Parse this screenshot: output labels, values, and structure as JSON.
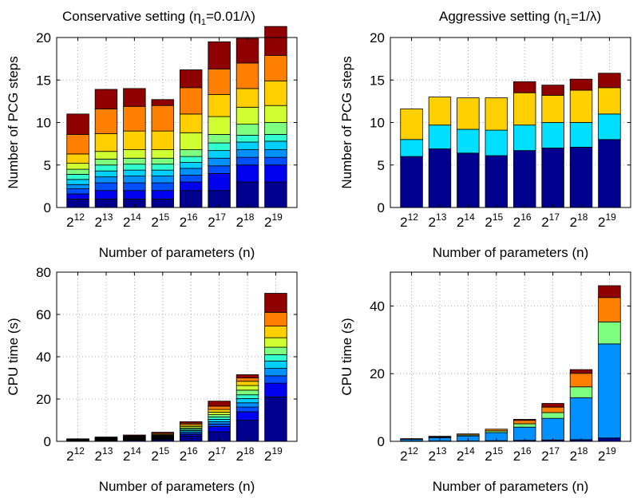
{
  "titles": {
    "left": "Conservative setting (η",
    "left_sub": "1",
    "left_tail": "=0.01/λ)",
    "right": "Aggressive setting (η",
    "right_sub": "1",
    "right_tail": "=1/λ)"
  },
  "chart_data": [
    {
      "type": "bar",
      "stacked": true,
      "categories": [
        "2^12",
        "2^13",
        "2^14",
        "2^15",
        "2^16",
        "2^17",
        "2^18",
        "2^19"
      ],
      "category_labels": [
        {
          "base": "2",
          "exp": "12"
        },
        {
          "base": "2",
          "exp": "13"
        },
        {
          "base": "2",
          "exp": "14"
        },
        {
          "base": "2",
          "exp": "15"
        },
        {
          "base": "2",
          "exp": "16"
        },
        {
          "base": "2",
          "exp": "17"
        },
        {
          "base": "2",
          "exp": "18"
        },
        {
          "base": "2",
          "exp": "19"
        }
      ],
      "xlabel": "Number of parameters (n)",
      "ylabel": "Number of PCG steps",
      "ylim": [
        0,
        20
      ],
      "yticks": [
        0,
        5,
        10,
        15,
        20
      ],
      "grid": true,
      "bars": [
        {
          "segments": [
            1,
            0.6,
            0.6,
            0.5,
            0.6,
            0.6,
            0.6,
            0.7,
            1.1,
            2.3,
            2.4
          ]
        },
        {
          "segments": [
            1,
            1,
            0.9,
            0.7,
            0.7,
            0.7,
            0.7,
            0.9,
            2.1,
            2.9,
            2.3
          ]
        },
        {
          "segments": [
            1,
            1,
            0.9,
            0.8,
            0.7,
            0.7,
            0.7,
            1.0,
            2.2,
            2.9,
            2.1
          ]
        },
        {
          "segments": [
            1,
            1,
            0.9,
            0.8,
            0.7,
            0.7,
            0.7,
            1.0,
            2.2,
            3.0,
            0.7
          ]
        },
        {
          "segments": [
            2,
            1,
            0.8,
            0.8,
            0.7,
            0.7,
            0.8,
            2.0,
            2.2,
            3.1,
            2.1
          ]
        },
        {
          "segments": [
            2,
            2,
            0.9,
            0.9,
            0.9,
            0.9,
            1.0,
            2.1,
            2.6,
            3.0,
            3.2
          ]
        },
        {
          "segments": [
            3,
            2,
            0.9,
            0.9,
            0.9,
            0.8,
            1.3,
            2.0,
            2.2,
            3.0,
            2.9
          ]
        },
        {
          "segments": [
            3,
            2,
            0.9,
            0.9,
            1.0,
            0.8,
            1.4,
            2.0,
            2.9,
            3.0,
            3.4
          ]
        }
      ]
    },
    {
      "type": "bar",
      "stacked": true,
      "categories": [
        "2^12",
        "2^13",
        "2^14",
        "2^15",
        "2^16",
        "2^17",
        "2^18",
        "2^19"
      ],
      "category_labels": [
        {
          "base": "2",
          "exp": "12"
        },
        {
          "base": "2",
          "exp": "13"
        },
        {
          "base": "2",
          "exp": "14"
        },
        {
          "base": "2",
          "exp": "15"
        },
        {
          "base": "2",
          "exp": "16"
        },
        {
          "base": "2",
          "exp": "17"
        },
        {
          "base": "2",
          "exp": "18"
        },
        {
          "base": "2",
          "exp": "19"
        }
      ],
      "xlabel": "Number of parameters (n)",
      "ylabel": "Number of PCG steps",
      "ylim": [
        0,
        20
      ],
      "yticks": [
        0,
        5,
        10,
        15,
        20
      ],
      "grid": true,
      "bars": [
        {
          "segments": [
            6.0,
            2.0,
            3.6
          ]
        },
        {
          "segments": [
            6.9,
            2.8,
            3.3
          ]
        },
        {
          "segments": [
            6.4,
            2.8,
            3.7
          ]
        },
        {
          "segments": [
            6.1,
            3.0,
            3.8
          ]
        },
        {
          "segments": [
            6.7,
            3.0,
            3.8,
            1.3
          ]
        },
        {
          "segments": [
            7.0,
            3.0,
            3.2,
            1.2
          ]
        },
        {
          "segments": [
            7.1,
            2.9,
            3.8,
            1.3
          ]
        },
        {
          "segments": [
            8.0,
            3.0,
            3.1,
            1.7
          ]
        }
      ]
    },
    {
      "type": "bar",
      "stacked": true,
      "categories": [
        "2^12",
        "2^13",
        "2^14",
        "2^15",
        "2^16",
        "2^17",
        "2^18",
        "2^19"
      ],
      "category_labels": [
        {
          "base": "2",
          "exp": "12"
        },
        {
          "base": "2",
          "exp": "13"
        },
        {
          "base": "2",
          "exp": "14"
        },
        {
          "base": "2",
          "exp": "15"
        },
        {
          "base": "2",
          "exp": "16"
        },
        {
          "base": "2",
          "exp": "17"
        },
        {
          "base": "2",
          "exp": "18"
        },
        {
          "base": "2",
          "exp": "19"
        }
      ],
      "xlabel": "Number of parameters (n)",
      "ylabel": "CPU time (s)",
      "ylim": [
        0,
        80
      ],
      "yticks": [
        0,
        20,
        40,
        60,
        80
      ],
      "grid": true,
      "bars": [
        {
          "segments": [
            0.2,
            0.1,
            0.1,
            0.1,
            0.1,
            0.1,
            0.1,
            0.1,
            0.1,
            0.1,
            0.1
          ]
        },
        {
          "segments": [
            0.3,
            0.15,
            0.15,
            0.15,
            0.15,
            0.15,
            0.15,
            0.15,
            0.2,
            0.2,
            0.3
          ]
        },
        {
          "segments": [
            0.5,
            0.25,
            0.2,
            0.2,
            0.2,
            0.2,
            0.2,
            0.25,
            0.3,
            0.3,
            0.4
          ]
        },
        {
          "segments": [
            0.8,
            0.3,
            0.3,
            0.3,
            0.3,
            0.3,
            0.3,
            0.3,
            0.4,
            0.5,
            0.5
          ]
        },
        {
          "segments": [
            2.5,
            0.8,
            0.6,
            0.6,
            0.6,
            0.6,
            0.6,
            0.7,
            0.8,
            0.7,
            0.8
          ]
        },
        {
          "segments": [
            4.5,
            2.5,
            1.2,
            1.1,
            1.1,
            1.1,
            1.1,
            1.2,
            1.3,
            1.5,
            2.4
          ]
        },
        {
          "segments": [
            10,
            4,
            2.2,
            2.0,
            2.0,
            1.8,
            2.2,
            2.2,
            2.0,
            1.6,
            1.5
          ]
        },
        {
          "segments": [
            21,
            6.5,
            3.5,
            3.5,
            3.5,
            3.0,
            3.5,
            4.5,
            5.5,
            6.5,
            9.0
          ]
        }
      ]
    },
    {
      "type": "bar",
      "stacked": true,
      "categories": [
        "2^12",
        "2^13",
        "2^14",
        "2^15",
        "2^16",
        "2^17",
        "2^18",
        "2^19"
      ],
      "category_labels": [
        {
          "base": "2",
          "exp": "12"
        },
        {
          "base": "2",
          "exp": "13"
        },
        {
          "base": "2",
          "exp": "14"
        },
        {
          "base": "2",
          "exp": "15"
        },
        {
          "base": "2",
          "exp": "16"
        },
        {
          "base": "2",
          "exp": "17"
        },
        {
          "base": "2",
          "exp": "18"
        },
        {
          "base": "2",
          "exp": "19"
        }
      ],
      "xlabel": "Number of parameters (n)",
      "ylabel": "CPU time (s)",
      "ylim": [
        0,
        50
      ],
      "yticks": [
        0,
        20,
        40
      ],
      "grid": true,
      "bars": [
        {
          "segments": [
            0.1,
            0.5,
            0.1,
            0.1
          ]
        },
        {
          "segments": [
            0.1,
            1.0,
            0.2,
            0.2
          ]
        },
        {
          "segments": [
            0.1,
            1.5,
            0.3,
            0.3
          ]
        },
        {
          "segments": [
            0.2,
            2.4,
            0.5,
            0.5
          ]
        },
        {
          "segments": [
            0.3,
            3.9,
            1.0,
            1.0,
            0.3
          ]
        },
        {
          "segments": [
            0.4,
            6.4,
            1.7,
            1.6,
            1.1
          ]
        },
        {
          "segments": [
            0.5,
            12.4,
            3.2,
            4.0,
            1.1
          ]
        },
        {
          "segments": [
            1.0,
            27.8,
            6.5,
            7.2,
            3.5
          ]
        }
      ]
    }
  ],
  "colors": {
    "left_segments": [
      "#00008f",
      "#0000ef",
      "#0050ff",
      "#0090ff",
      "#00cfff",
      "#30ffcf",
      "#7fff80",
      "#cfff30",
      "#ffcf00",
      "#ff8000",
      "#ff1000",
      "#8f0000"
    ],
    "right_steps_segments": [
      "#00008f",
      "#00dfff",
      "#ffd000",
      "#8f0000"
    ],
    "right_time_segments": [
      "#00008f",
      "#0090ff",
      "#7fff80",
      "#ff8000",
      "#ff1000",
      "#8f0000"
    ],
    "grid": "#999999"
  }
}
